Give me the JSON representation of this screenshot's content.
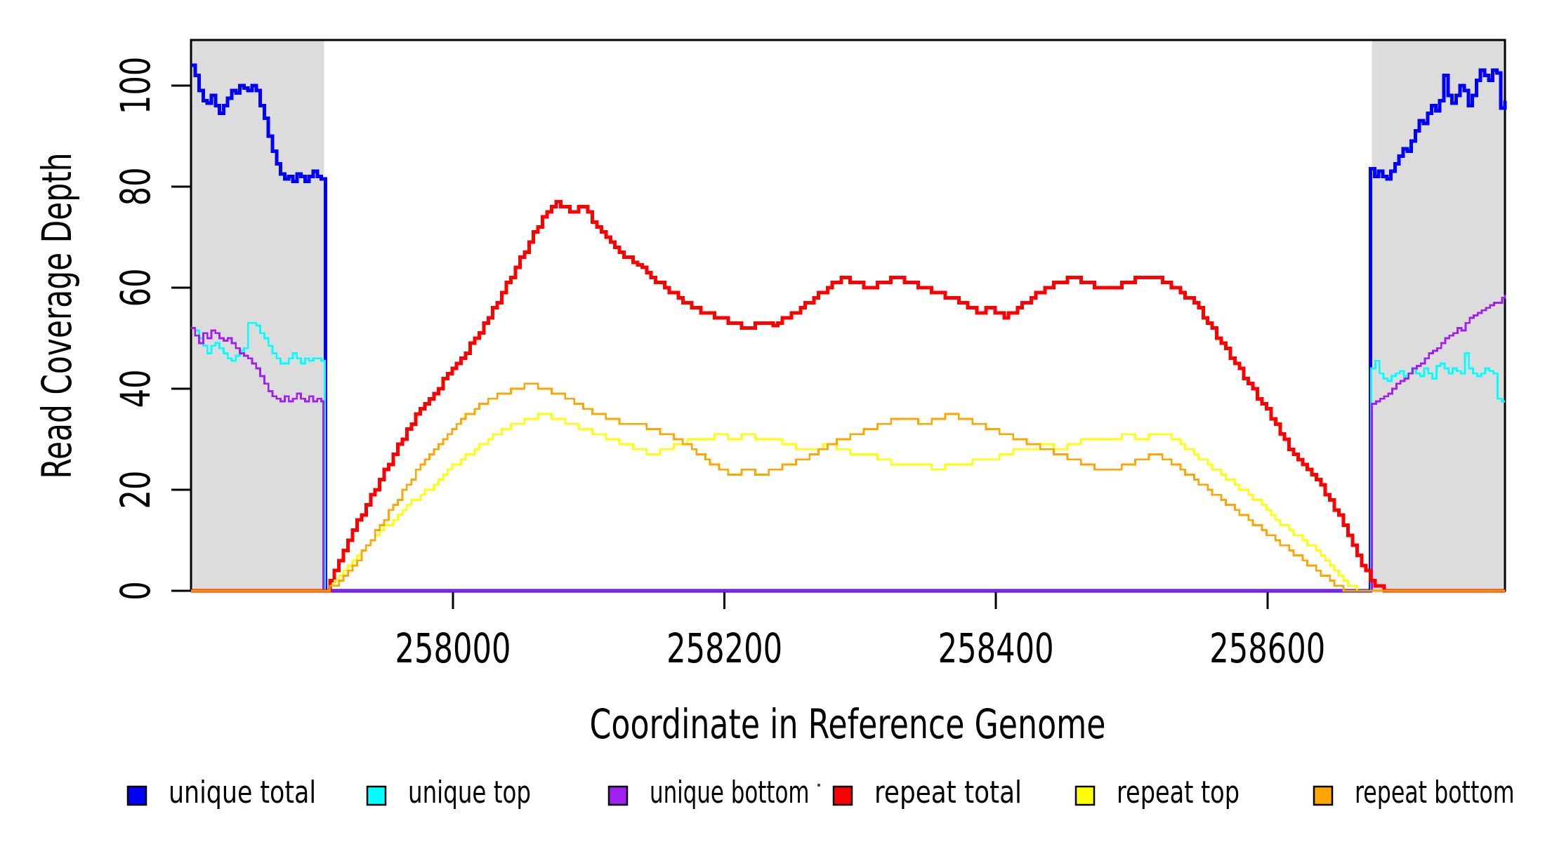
{
  "figure": {
    "x_axis_label": "Coordinate in Reference Genome",
    "y_axis_label": "Read Coverage Depth"
  },
  "colors": {
    "background": "#FFFFFF",
    "frame": "#000000",
    "shaded_region": "#DCDCDC",
    "unique_total": "#0000FF",
    "unique_top": "#00FFFF",
    "unique_bottom": "#A020F0",
    "repeat_total": "#FF0000",
    "repeat_top": "#FFFF00",
    "repeat_bottom": "#FFA500"
  },
  "legend": {
    "items": [
      {
        "label": "unique total",
        "color": "#0000FF"
      },
      {
        "label": "unique top",
        "color": "#00FFFF"
      },
      {
        "label": "unique bottom",
        "color": "#A020F0"
      },
      {
        "label": "repeat total",
        "color": "#FF0000"
      },
      {
        "label": "repeat top",
        "color": "#FFFF00"
      },
      {
        "label": "repeat bottom",
        "color": "#FFA500"
      }
    ]
  },
  "chart_data": {
    "type": "line",
    "title": "",
    "xlabel": "Coordinate in Reference Genome",
    "ylabel": "Read Coverage Depth",
    "xlim": [
      257807,
      258775
    ],
    "ylim": [
      0,
      109
    ],
    "x_ticks": [
      258000,
      258200,
      258400,
      258600
    ],
    "y_ticks": [
      0,
      20,
      40,
      60,
      80,
      100
    ],
    "grid": false,
    "legend_position": "bottom",
    "line_style": "step",
    "shaded_regions": [
      {
        "x0": 257807,
        "x1": 257905
      },
      {
        "x0": 258677,
        "x1": 258775
      }
    ],
    "series": [
      {
        "name": "unique total",
        "color": "#0000FF",
        "width": 5,
        "segments": [
          {
            "x0": 257807,
            "dx": 3,
            "values": [
              104,
              102,
              99,
              97,
              96.5,
              98,
              96,
              94.5,
              96,
              97.5,
              99,
              98.5,
              100,
              99.5,
              99,
              100,
              99,
              96,
              93.5,
              90,
              87,
              84.5,
              82.5,
              81.5,
              82,
              81,
              82.5,
              82,
              81,
              82,
              83,
              82,
              81.5
            ]
          },
          {
            "points": [
              [
                257906,
                0
              ],
              [
                258676,
                0
              ]
            ]
          },
          {
            "x0": 258676,
            "dx": 3,
            "values": [
              83.5,
              82,
              83,
              82,
              81.5,
              83,
              84.5,
              86,
              87.5,
              87,
              89,
              91,
              93,
              92.5,
              94.5,
              96,
              95,
              97,
              102,
              98,
              96.5,
              98,
              100,
              99,
              96,
              98,
              101,
              103,
              102,
              101,
              103,
              102.5,
              95.5,
              97
            ]
          }
        ]
      },
      {
        "name": "unique top",
        "color": "#00FFFF",
        "width": 2.8,
        "segments": [
          {
            "x0": 257807,
            "dx": 3,
            "values": [
              52,
              51.5,
              50,
              48.5,
              47,
              48.5,
              49,
              48,
              47,
              46,
              45.5,
              46.5,
              47.5,
              48,
              53,
              53,
              52.5,
              51,
              50,
              48.5,
              47,
              46,
              45,
              45,
              46,
              47,
              46,
              45,
              46,
              45.5,
              46,
              46,
              45.5
            ]
          },
          {
            "points": [
              [
                257905.5,
                0
              ],
              [
                258676.5,
                0
              ]
            ]
          },
          {
            "x0": 258676.5,
            "dx": 3,
            "values": [
              44,
              45.5,
              43,
              42,
              41.5,
              42.5,
              43,
              43.5,
              42.5,
              43,
              44,
              43,
              42.5,
              44,
              43,
              42,
              44.5,
              45,
              44,
              43,
              44,
              43.5,
              43,
              47,
              44,
              43,
              42.5,
              43,
              44,
              43.5,
              43,
              38,
              37.5,
              37.5
            ]
          }
        ]
      },
      {
        "name": "unique bottom",
        "color": "#A020F0",
        "width": 2.8,
        "segments": [
          {
            "x0": 257807,
            "dx": 3,
            "values": [
              52,
              50.5,
              49,
              51,
              50,
              51.5,
              51,
              50,
              49.5,
              50,
              49,
              48,
              47,
              46.5,
              46,
              45,
              44,
              42.5,
              41,
              39.5,
              38.5,
              38,
              37.5,
              38.5,
              37.5,
              38,
              39,
              38,
              37.5,
              38.5,
              37.5,
              38,
              37.5
            ]
          },
          {
            "points": [
              [
                257904.5,
                0
              ],
              [
                258677,
                0
              ]
            ]
          },
          {
            "x0": 258677,
            "dx": 3,
            "values": [
              37,
              37.5,
              38,
              38.5,
              39,
              40,
              41,
              41.5,
              42,
              43,
              44,
              44.5,
              45,
              46,
              47,
              47.5,
              48,
              49,
              50,
              50.5,
              51,
              52,
              51.5,
              53,
              54,
              54.5,
              55,
              55.5,
              56,
              56.5,
              57,
              57,
              58,
              58.5
            ]
          }
        ]
      },
      {
        "name": "repeat total",
        "color": "#FF0000",
        "width": 5,
        "segments": [
          {
            "points": [
              [
                257807,
                0
              ]
            ]
          },
          {
            "x0": 257906,
            "dx": 10,
            "values": [
              0,
              6,
              12,
              17,
              22,
              27,
              32,
              36,
              39,
              43,
              46,
              50,
              54,
              59,
              64,
              69,
              74,
              77,
              75,
              76,
              72,
              69,
              66,
              64.5,
              62,
              60,
              58,
              56,
              55,
              54,
              53,
              52,
              53,
              52.5,
              54,
              56,
              58,
              60,
              62,
              61,
              60,
              61,
              62,
              61,
              60,
              59,
              58,
              57,
              55,
              56,
              54,
              56,
              58,
              60,
              61,
              62,
              61,
              60,
              60,
              61,
              62,
              62,
              61,
              59,
              57,
              53,
              49,
              45,
              41,
              37,
              33,
              28,
              25,
              22,
              18,
              13,
              7,
              2,
              0
            ]
          },
          {
            "points": [
              [
                258775,
                0
              ]
            ]
          }
        ]
      },
      {
        "name": "repeat top",
        "color": "#FFFF00",
        "width": 2.8,
        "segments": [
          {
            "points": [
              [
                257807,
                0
              ]
            ]
          },
          {
            "x0": 257906,
            "dx": 10,
            "values": [
              0,
              3,
              6,
              9,
              12,
              14,
              17,
              19,
              21,
              24,
              26,
              28,
              30,
              32,
              33,
              34,
              35,
              34,
              33,
              32,
              31,
              30,
              29,
              28,
              27,
              28,
              29,
              30,
              30,
              31,
              30,
              31,
              30,
              30,
              29,
              28,
              28,
              29,
              28,
              27,
              27,
              26,
              25,
              25,
              25,
              24,
              25,
              25,
              26,
              26,
              27,
              28,
              28,
              29,
              28,
              29,
              30,
              30,
              30,
              31,
              30,
              31,
              31,
              29,
              27,
              25,
              23,
              21,
              19,
              17,
              14,
              12,
              10,
              8,
              5,
              2,
              0,
              0,
              0
            ]
          },
          {
            "points": [
              [
                258775,
                0
              ]
            ]
          }
        ]
      },
      {
        "name": "repeat bottom",
        "color": "#FFA500",
        "width": 2.8,
        "segments": [
          {
            "points": [
              [
                257807,
                0
              ]
            ]
          },
          {
            "x0": 257906,
            "dx": 10,
            "values": [
              0,
              2,
              5,
              9,
              13,
              17,
              21,
              25,
              28,
              31,
              34,
              36,
              38,
              39,
              40,
              41,
              40,
              39,
              38,
              36,
              35,
              34,
              33,
              33,
              32,
              31,
              30,
              28,
              26,
              24,
              23,
              24,
              23,
              24,
              25,
              26,
              27,
              29,
              30,
              31,
              32,
              33,
              34,
              34,
              33,
              34,
              35,
              34,
              33,
              32,
              31,
              30,
              29,
              28,
              27,
              26,
              25,
              24,
              24,
              25,
              26,
              27,
              26,
              24,
              22,
              20,
              18,
              16,
              14,
              12,
              10,
              8,
              6,
              4,
              2,
              0,
              0,
              0,
              0
            ]
          },
          {
            "points": [
              [
                258775,
                0
              ]
            ]
          }
        ]
      }
    ]
  }
}
